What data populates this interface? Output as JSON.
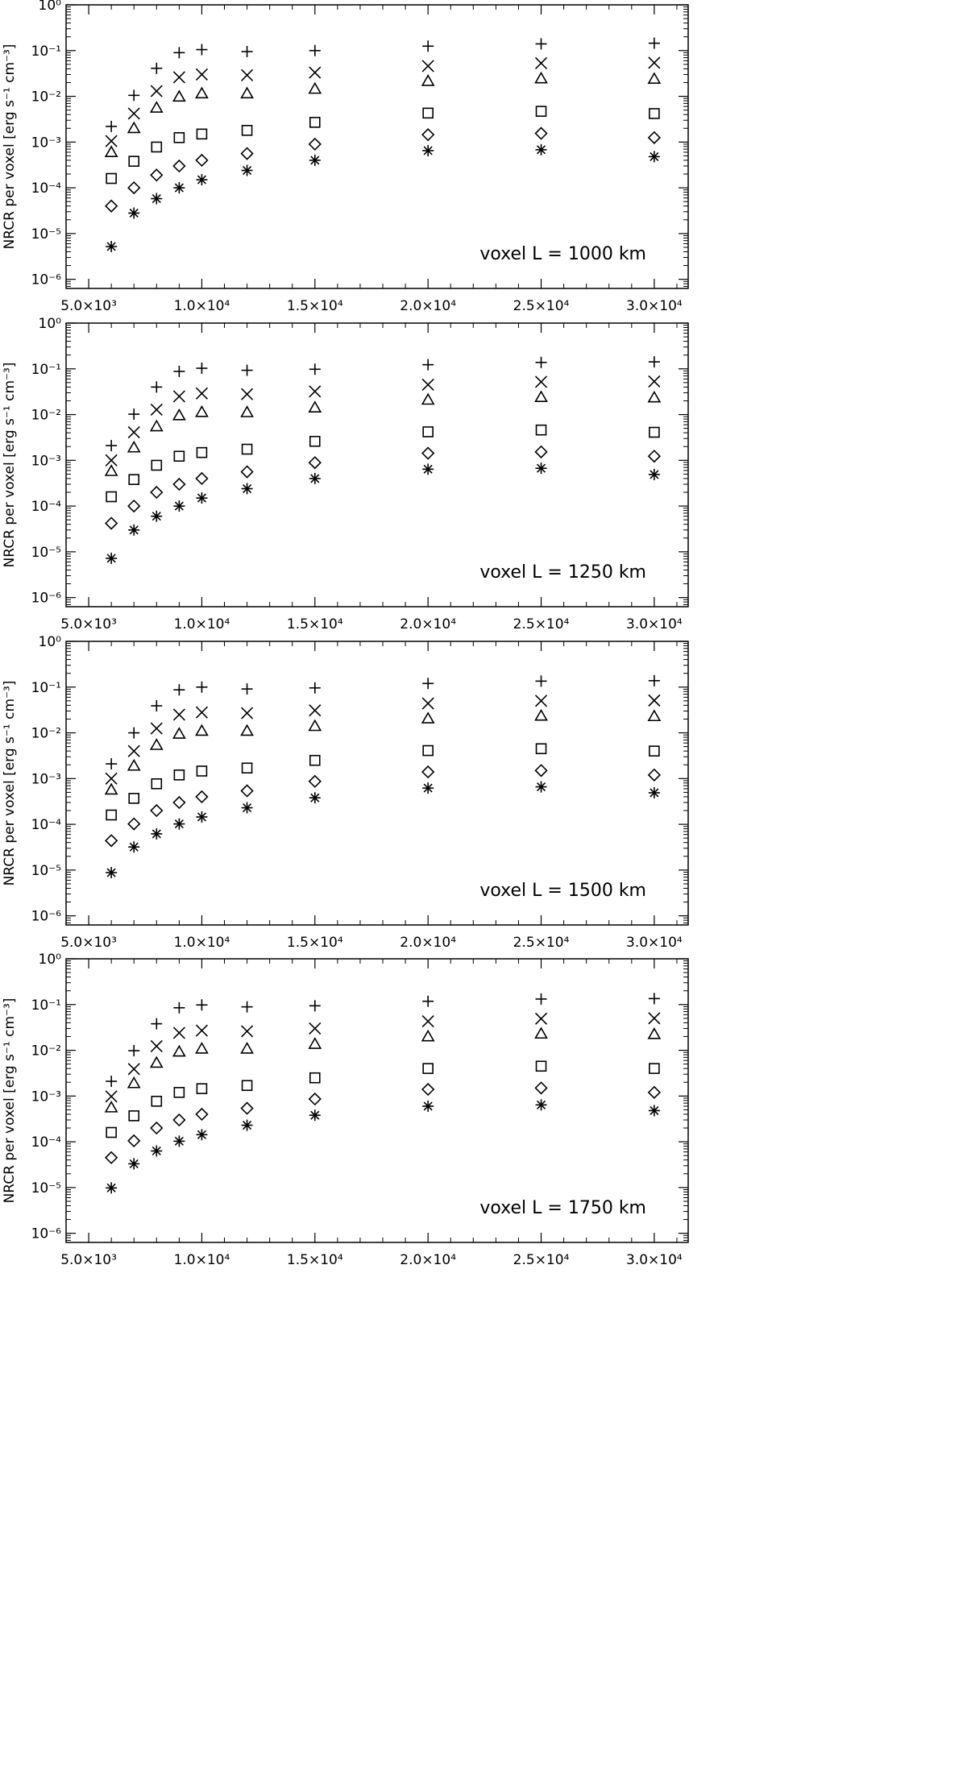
{
  "x_ticks": [
    "5.0×10³",
    "1.0×10⁴",
    "1.5×10⁴",
    "2.0×10⁴",
    "2.5×10⁴",
    "3.0×10⁴"
  ],
  "y_ticks": [
    "10⁰",
    "10⁻¹",
    "10⁻²",
    "10⁻³",
    "10⁻⁴",
    "10⁻⁵",
    "10⁻⁶"
  ],
  "chart_data": [
    {
      "type": "scatter",
      "ylabel": "NRCR per voxel [erg s⁻¹ cm⁻³]",
      "annotation": "voxel L = 1000 km",
      "xlim": [
        4000,
        31500
      ],
      "ylim_log10": [
        -6.2,
        0
      ],
      "y_scale": "log",
      "grid": false,
      "x": [
        6000,
        7000,
        8000,
        9000,
        10000,
        12000,
        15000,
        20000,
        25000,
        30000
      ],
      "series": [
        {
          "marker": "plus",
          "values": [
            0.0022,
            0.0105,
            0.041,
            0.09,
            0.105,
            0.095,
            0.1,
            0.125,
            0.14,
            0.145
          ]
        },
        {
          "marker": "cross",
          "values": [
            0.00105,
            0.0042,
            0.013,
            0.026,
            0.03,
            0.029,
            0.033,
            0.046,
            0.053,
            0.054
          ]
        },
        {
          "marker": "triangle",
          "values": [
            0.0006,
            0.002,
            0.0056,
            0.0098,
            0.0115,
            0.0115,
            0.0145,
            0.0215,
            0.0245,
            0.024
          ]
        },
        {
          "marker": "square",
          "values": [
            0.00016,
            0.00038,
            0.00078,
            0.00125,
            0.0015,
            0.0018,
            0.0027,
            0.0043,
            0.0047,
            0.0042
          ]
        },
        {
          "marker": "diamond",
          "values": [
            4e-05,
            0.0001,
            0.00019,
            0.0003,
            0.0004,
            0.00056,
            0.0009,
            0.00145,
            0.00155,
            0.00125
          ]
        },
        {
          "marker": "asterisk",
          "values": [
            5.2e-06,
            2.8e-05,
            5.8e-05,
            0.0001,
            0.00015,
            0.00024,
            0.0004,
            0.00065,
            0.00068,
            0.00048
          ]
        }
      ]
    },
    {
      "type": "scatter",
      "ylabel": "NRCR per voxel [erg s⁻¹ cm⁻³]",
      "annotation": "voxel L = 1250 km",
      "xlim": [
        4000,
        31500
      ],
      "ylim_log10": [
        -6.2,
        0
      ],
      "y_scale": "log",
      "grid": false,
      "x": [
        6000,
        7000,
        8000,
        9000,
        10000,
        12000,
        15000,
        20000,
        25000,
        30000
      ],
      "series": [
        {
          "marker": "plus",
          "values": [
            0.0021,
            0.0102,
            0.04,
            0.088,
            0.103,
            0.093,
            0.098,
            0.123,
            0.138,
            0.142
          ]
        },
        {
          "marker": "cross",
          "values": [
            0.001,
            0.0041,
            0.0128,
            0.025,
            0.029,
            0.028,
            0.032,
            0.045,
            0.052,
            0.053
          ]
        },
        {
          "marker": "triangle",
          "values": [
            0.00058,
            0.0019,
            0.0055,
            0.0096,
            0.0113,
            0.0112,
            0.0142,
            0.021,
            0.024,
            0.0235
          ]
        },
        {
          "marker": "square",
          "values": [
            0.00016,
            0.00038,
            0.00078,
            0.00123,
            0.00148,
            0.00175,
            0.0026,
            0.0042,
            0.0046,
            0.0041
          ]
        },
        {
          "marker": "diamond",
          "values": [
            4.2e-05,
            0.0001,
            0.0002,
            0.0003,
            0.0004,
            0.00056,
            0.00089,
            0.00143,
            0.00153,
            0.00123
          ]
        },
        {
          "marker": "asterisk",
          "values": [
            7.2e-06,
            3e-05,
            6e-05,
            0.0001,
            0.00015,
            0.00024,
            0.0004,
            0.00064,
            0.00067,
            0.00049
          ]
        }
      ]
    },
    {
      "type": "scatter",
      "ylabel": "NRCR per voxel [erg s⁻¹ cm⁻³]",
      "annotation": "voxel L = 1500 km",
      "xlim": [
        4000,
        31500
      ],
      "ylim_log10": [
        -6.2,
        0
      ],
      "y_scale": "log",
      "grid": false,
      "x": [
        6000,
        7000,
        8000,
        9000,
        10000,
        12000,
        15000,
        20000,
        25000,
        30000
      ],
      "series": [
        {
          "marker": "plus",
          "values": [
            0.0021,
            0.01,
            0.039,
            0.087,
            0.1,
            0.091,
            0.096,
            0.12,
            0.135,
            0.138
          ]
        },
        {
          "marker": "cross",
          "values": [
            0.001,
            0.004,
            0.0125,
            0.025,
            0.028,
            0.027,
            0.031,
            0.044,
            0.05,
            0.051
          ]
        },
        {
          "marker": "triangle",
          "values": [
            0.00057,
            0.0019,
            0.0054,
            0.0095,
            0.011,
            0.011,
            0.014,
            0.0205,
            0.0235,
            0.023
          ]
        },
        {
          "marker": "square",
          "values": [
            0.00016,
            0.00037,
            0.00077,
            0.0012,
            0.00146,
            0.0017,
            0.0025,
            0.0041,
            0.0045,
            0.004
          ]
        },
        {
          "marker": "diamond",
          "values": [
            4.4e-05,
            0.000102,
            0.0002,
            0.0003,
            0.0004,
            0.00054,
            0.00087,
            0.0014,
            0.0015,
            0.0012
          ]
        },
        {
          "marker": "asterisk",
          "values": [
            8.8e-06,
            3.2e-05,
            6.2e-05,
            0.000102,
            0.000145,
            0.00023,
            0.00038,
            0.00062,
            0.00066,
            0.00049
          ]
        }
      ]
    },
    {
      "type": "scatter",
      "ylabel": "NRCR per voxel [erg s⁻¹ cm⁻³]",
      "annotation": "voxel L = 1750 km",
      "xlim": [
        4000,
        31500
      ],
      "ylim_log10": [
        -6.2,
        0
      ],
      "y_scale": "log",
      "grid": false,
      "x": [
        6000,
        7000,
        8000,
        9000,
        10000,
        12000,
        15000,
        20000,
        25000,
        30000
      ],
      "series": [
        {
          "marker": "plus",
          "values": [
            0.0021,
            0.0098,
            0.038,
            0.085,
            0.098,
            0.089,
            0.094,
            0.118,
            0.132,
            0.135
          ]
        },
        {
          "marker": "cross",
          "values": [
            0.00098,
            0.0039,
            0.0123,
            0.024,
            0.027,
            0.026,
            0.03,
            0.043,
            0.049,
            0.05
          ]
        },
        {
          "marker": "triangle",
          "values": [
            0.00056,
            0.0019,
            0.0053,
            0.0093,
            0.0108,
            0.0108,
            0.0137,
            0.02,
            0.023,
            0.0225
          ]
        },
        {
          "marker": "square",
          "values": [
            0.00016,
            0.00037,
            0.00077,
            0.0012,
            0.00145,
            0.0017,
            0.0025,
            0.004,
            0.0045,
            0.004
          ]
        },
        {
          "marker": "diamond",
          "values": [
            4.5e-05,
            0.000105,
            0.0002,
            0.0003,
            0.0004,
            0.00054,
            0.00086,
            0.0014,
            0.0015,
            0.0012
          ]
        },
        {
          "marker": "asterisk",
          "values": [
            9.8e-06,
            3.3e-05,
            6.3e-05,
            0.000103,
            0.000143,
            0.00023,
            0.00038,
            0.0006,
            0.00064,
            0.00048
          ]
        }
      ]
    }
  ]
}
